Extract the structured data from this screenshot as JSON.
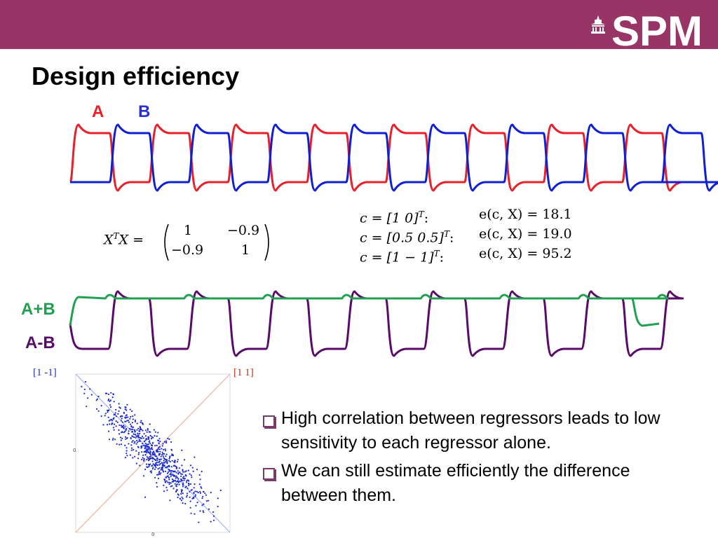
{
  "banner": {
    "color": "#983466",
    "logo_text": "SPM",
    "logo_icon": "building-icon"
  },
  "title": "Design efficiency",
  "top_plot": {
    "labels": {
      "a": "A",
      "b": "B"
    },
    "colors": {
      "a": "#e8202a",
      "b": "#1020d0"
    },
    "cycles": 8
  },
  "matrix": {
    "lhs_base": "X",
    "lhs_sup": "T",
    "lhs_rest": "X =",
    "cells": [
      [
        "1",
        "−0.9"
      ],
      [
        "−0.9",
        "1"
      ]
    ]
  },
  "contrasts": [
    {
      "c": "c = [1 0]",
      "sup": "T",
      "sep": ":",
      "e": "e(c, X) = 18.1"
    },
    {
      "c": "c = [0.5 0.5]",
      "sup": "T",
      "sep": ":",
      "e": "e(c, X) = 19.0"
    },
    {
      "c": "c = [1  − 1]",
      "sup": "T",
      "sep": ":",
      "e": "e(c, X) = 95.2"
    }
  ],
  "mid_plot": {
    "labels": {
      "sum": "A+B",
      "diff": "A-B"
    },
    "colors": {
      "sum": "#20a050",
      "diff": "#5a0a6a"
    }
  },
  "scatter": {
    "label_left": "[1 -1]",
    "label_right": "[1 1]",
    "label_left_color": "#2030c0",
    "label_right_color": "#c03020",
    "axis_zero_y": "0",
    "axis_zero_x": "0",
    "point_color": "#1a2ad0",
    "correlation": -0.9
  },
  "bullets": [
    "High correlation between regressors leads to low sensitivity to each regressor alone.",
    "We can still estimate efficiently the difference between them."
  ]
}
